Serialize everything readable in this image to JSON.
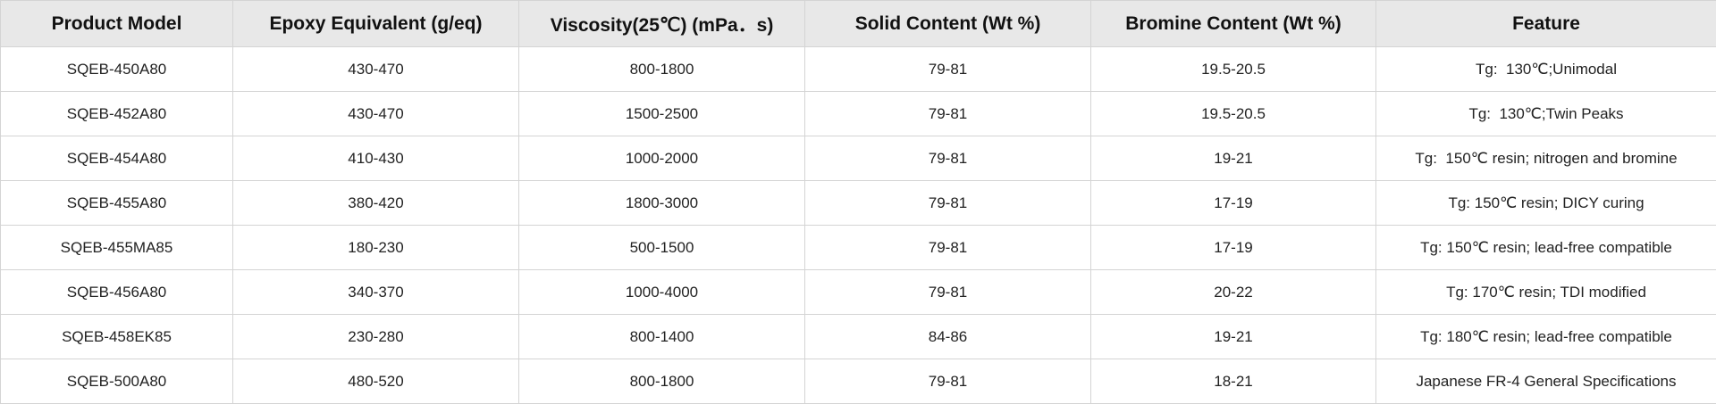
{
  "table": {
    "header": [
      "Product Model",
      "Epoxy Equivalent (g/eq)",
      "Viscosity(25℃) (mPa．s)",
      "Solid Content (Wt %)",
      "Bromine Content (Wt %)",
      "Feature"
    ],
    "rows": [
      [
        "SQEB-450A80",
        "430-470",
        "800-1800",
        "79-81",
        "19.5-20.5",
        "Tg:  130℃;Unimodal"
      ],
      [
        "SQEB-452A80",
        "430-470",
        "1500-2500",
        "79-81",
        "19.5-20.5",
        "Tg:  130℃;Twin Peaks"
      ],
      [
        "SQEB-454A80",
        "410-430",
        "1000-2000",
        "79-81",
        "19-21",
        "Tg:  150℃ resin; nitrogen and bromine"
      ],
      [
        "SQEB-455A80",
        "380-420",
        "1800-3000",
        "79-81",
        "17-19",
        "Tg: 150℃ resin; DICY curing"
      ],
      [
        "SQEB-455MA85",
        "180-230",
        "500-1500",
        "79-81",
        "17-19",
        "Tg: 150℃ resin; lead-free compatible"
      ],
      [
        "SQEB-456A80",
        "340-370",
        "1000-4000",
        "79-81",
        "20-22",
        "Tg: 170℃ resin; TDI modified"
      ],
      [
        "SQEB-458EK85",
        "230-280",
        "800-1400",
        "84-86",
        "19-21",
        "Tg: 180℃ resin; lead-free compatible"
      ],
      [
        "SQEB-500A80",
        "480-520",
        "800-1800",
        "79-81",
        "18-21",
        "Japanese FR-4 General Specifications"
      ]
    ]
  }
}
